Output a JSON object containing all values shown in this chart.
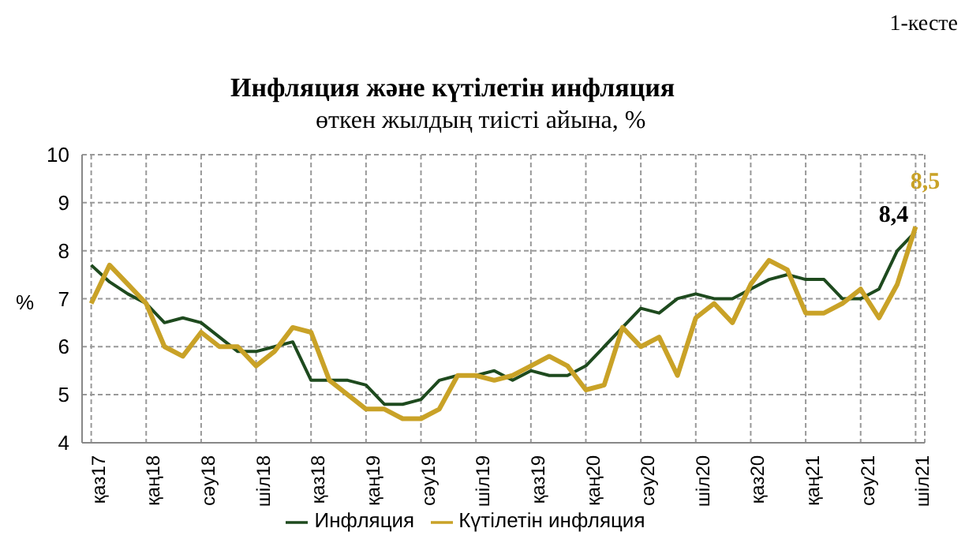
{
  "chart_data": {
    "type": "line",
    "title": "Инфляция және күтілетін инфляция",
    "subtitle": "өткен жылдың тиісті айына, %",
    "ylabel": "%",
    "annotations": [
      "1-кесте"
    ],
    "categories": [
      "қаз17",
      null,
      null,
      "қаң18",
      null,
      null,
      "сәу18",
      null,
      null,
      "шіл18",
      null,
      null,
      "қаз18",
      null,
      null,
      "қаң19",
      null,
      null,
      "сәу19",
      null,
      null,
      "шіл19",
      null,
      null,
      "қаз19",
      null,
      null,
      "қаң20",
      null,
      null,
      "сәу20",
      null,
      null,
      "шіл20",
      null,
      null,
      "қаз20",
      null,
      null,
      "қаң21",
      null,
      null,
      "сәу21",
      null,
      null,
      "шіл21"
    ],
    "series": [
      {
        "name": "Инфляция",
        "color": "#1e4a1e",
        "values": [
          7.7,
          7.35,
          7.1,
          6.9,
          6.5,
          6.6,
          6.5,
          6.2,
          5.9,
          5.9,
          6.0,
          6.1,
          5.3,
          5.3,
          5.3,
          5.2,
          4.8,
          4.8,
          4.9,
          5.3,
          5.4,
          5.4,
          5.5,
          5.3,
          5.5,
          5.4,
          5.4,
          5.6,
          6.0,
          6.4,
          6.8,
          6.7,
          7.0,
          7.1,
          7.0,
          7.0,
          7.2,
          7.4,
          7.5,
          7.4,
          7.4,
          7.0,
          7.0,
          7.2,
          8.0,
          8.4
        ],
        "value_labels": [
          null,
          null,
          null,
          null,
          null,
          null,
          null,
          null,
          null,
          null,
          null,
          null,
          null,
          null,
          null,
          null,
          null,
          null,
          null,
          null,
          null,
          null,
          null,
          null,
          null,
          null,
          null,
          null,
          null,
          null,
          null,
          null,
          null,
          null,
          null,
          null,
          null,
          null,
          null,
          null,
          null,
          null,
          null,
          null,
          null,
          "8,4"
        ]
      },
      {
        "name": "Күтілетін инфляция",
        "color": "#c9a227",
        "values": [
          6.9,
          7.7,
          7.3,
          6.9,
          6.0,
          5.8,
          6.3,
          6.0,
          6.0,
          5.6,
          5.9,
          6.4,
          6.3,
          5.3,
          5.0,
          4.7,
          4.7,
          4.5,
          4.5,
          4.7,
          5.4,
          5.4,
          5.3,
          5.4,
          5.6,
          5.8,
          5.6,
          5.1,
          5.2,
          6.4,
          6.0,
          6.2,
          5.4,
          6.6,
          6.9,
          6.5,
          7.3,
          7.8,
          7.6,
          6.7,
          6.7,
          6.9,
          7.2,
          6.6,
          7.3,
          8.5
        ],
        "value_labels": [
          null,
          null,
          null,
          null,
          null,
          null,
          null,
          null,
          null,
          null,
          null,
          null,
          null,
          null,
          null,
          null,
          null,
          null,
          null,
          null,
          null,
          null,
          null,
          null,
          null,
          null,
          null,
          null,
          null,
          null,
          null,
          null,
          null,
          null,
          null,
          null,
          null,
          null,
          null,
          null,
          null,
          null,
          null,
          null,
          null,
          "8,5"
        ]
      }
    ],
    "ylim": [
      4,
      10
    ],
    "yticks": [
      4,
      5,
      6,
      7,
      8,
      9,
      10
    ],
    "grid": true,
    "legend": "bottom"
  }
}
